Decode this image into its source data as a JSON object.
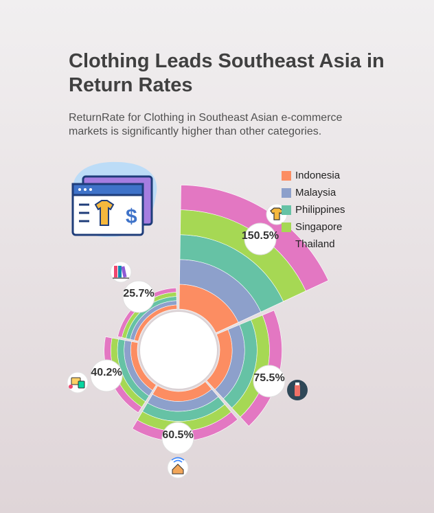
{
  "header": {
    "title": "Clothing Leads Southeast Asia in Return Rates",
    "subtitle": "ReturnRate for Clothing in Southeast Asian e-commerce markets is significantly higher than other categories."
  },
  "icons": {
    "hero": "shopping-browser-tshirt-dollar-icon",
    "clothing": "tshirt-icon",
    "cosmetics": "cosmetics-bottle-icon",
    "home": "smart-home-icon",
    "electronics": "electronics-devices-icon",
    "books": "books-icon"
  },
  "colors": {
    "Indonesia": "#fc8d62",
    "Malaysia": "#8da0cb",
    "Philippines": "#66c2a5",
    "Singapore": "#a6d854",
    "Thailand": "#e377c2"
  },
  "chart_data": {
    "type": "radial-stacked-bar",
    "title": "Clothing Leads Southeast Asia in Return Rates",
    "legend_position": "top-right",
    "series_names": [
      "Indonesia",
      "Malaysia",
      "Philippines",
      "Singapore",
      "Thailand"
    ],
    "categories": [
      {
        "name": "Clothing",
        "icon": "tshirt-icon",
        "label": "150.5%",
        "values": [
          30.1,
          30.1,
          30.1,
          30.1,
          30.1
        ]
      },
      {
        "name": "Cosmetics",
        "icon": "cosmetics-bottle-icon",
        "label": "75.5%",
        "values": [
          15.1,
          15.1,
          15.1,
          15.1,
          15.1
        ]
      },
      {
        "name": "Home",
        "icon": "smart-home-icon",
        "label": "60.5%",
        "values": [
          12.1,
          12.1,
          12.1,
          12.1,
          12.1
        ]
      },
      {
        "name": "Electronics",
        "icon": "electronics-devices-icon",
        "label": "40.2%",
        "values": [
          8.04,
          8.04,
          8.04,
          8.04,
          8.04
        ]
      },
      {
        "name": "Books",
        "icon": "books-icon",
        "label": "25.7%",
        "values": [
          5.14,
          5.14,
          5.14,
          5.14,
          5.14
        ]
      }
    ]
  }
}
